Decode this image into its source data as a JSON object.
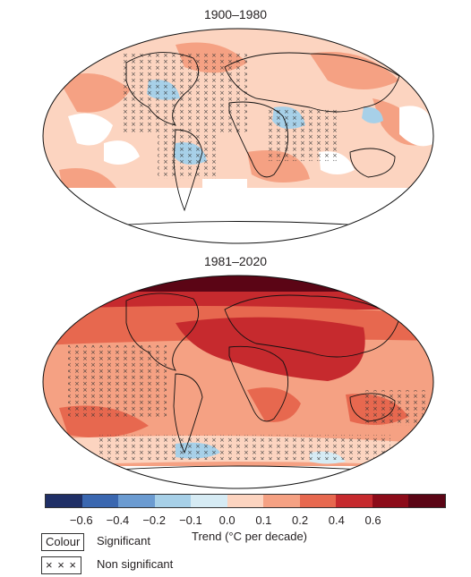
{
  "panels": [
    {
      "title": "1900–1980"
    },
    {
      "title": "1981–2020"
    }
  ],
  "colorbar": {
    "colors": [
      "#1f2f66",
      "#3a67b0",
      "#6b9bd1",
      "#a7d0e8",
      "#d6ebf4",
      "#fcd4c0",
      "#f5a183",
      "#e7684f",
      "#c62a2e",
      "#8c0b19",
      "#5b0515"
    ],
    "ticks": [
      "−0.6",
      "−0.4",
      "−0.2",
      "−0.1",
      "0.0",
      "0.1",
      "0.2",
      "0.4",
      "0.6"
    ],
    "label": "Trend (°C per decade)"
  },
  "legend": {
    "colour_box": "Colour",
    "colour_text": "Significant",
    "cross_box": "× × ×",
    "cross_text": "Non significant"
  }
}
